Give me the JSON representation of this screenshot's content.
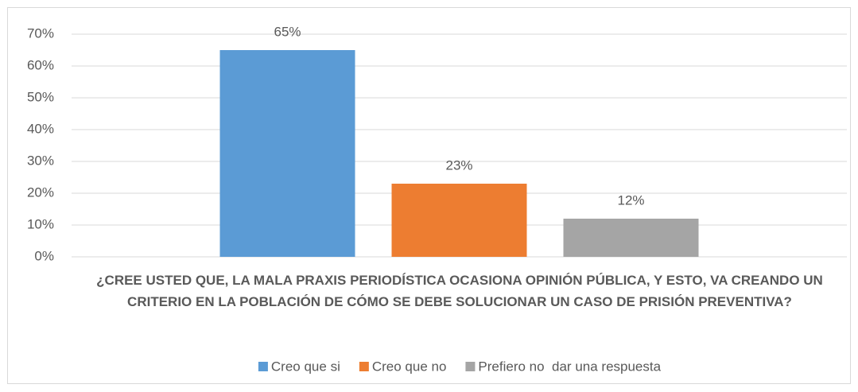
{
  "chart_data": {
    "type": "bar",
    "categories": [
      "¿CREE USTED QUE, LA MALA PRAXIS PERIODÍSTICA OCASIONA OPINIÓN PÚBLICA, Y ESTO, VA CREANDO UN CRITERIO EN LA POBLACIÓN DE CÓMO SE DEBE SOLUCIONAR UN CASO DE PRISIÓN PREVENTIVA?"
    ],
    "series": [
      {
        "name": "Creo que si",
        "color": "#5b9bd5",
        "values": [
          65
        ],
        "value_labels": [
          "65%"
        ]
      },
      {
        "name": "Creo que no",
        "color": "#ed7d31",
        "values": [
          23
        ],
        "value_labels": [
          "23%"
        ]
      },
      {
        "name": "Prefiero no  dar una respuesta",
        "color": "#a5a5a5",
        "values": [
          12
        ],
        "value_labels": [
          "12%"
        ]
      }
    ],
    "ylim": [
      0,
      70
    ],
    "yticks": [
      {
        "value": 0,
        "label": "0%"
      },
      {
        "value": 10,
        "label": "10%"
      },
      {
        "value": 20,
        "label": "20%"
      },
      {
        "value": 30,
        "label": "30%"
      },
      {
        "value": 40,
        "label": "40%"
      },
      {
        "value": 50,
        "label": "50%"
      },
      {
        "value": 60,
        "label": "60%"
      },
      {
        "value": 70,
        "label": "70%"
      }
    ],
    "grid": true,
    "legend": "bottom"
  }
}
